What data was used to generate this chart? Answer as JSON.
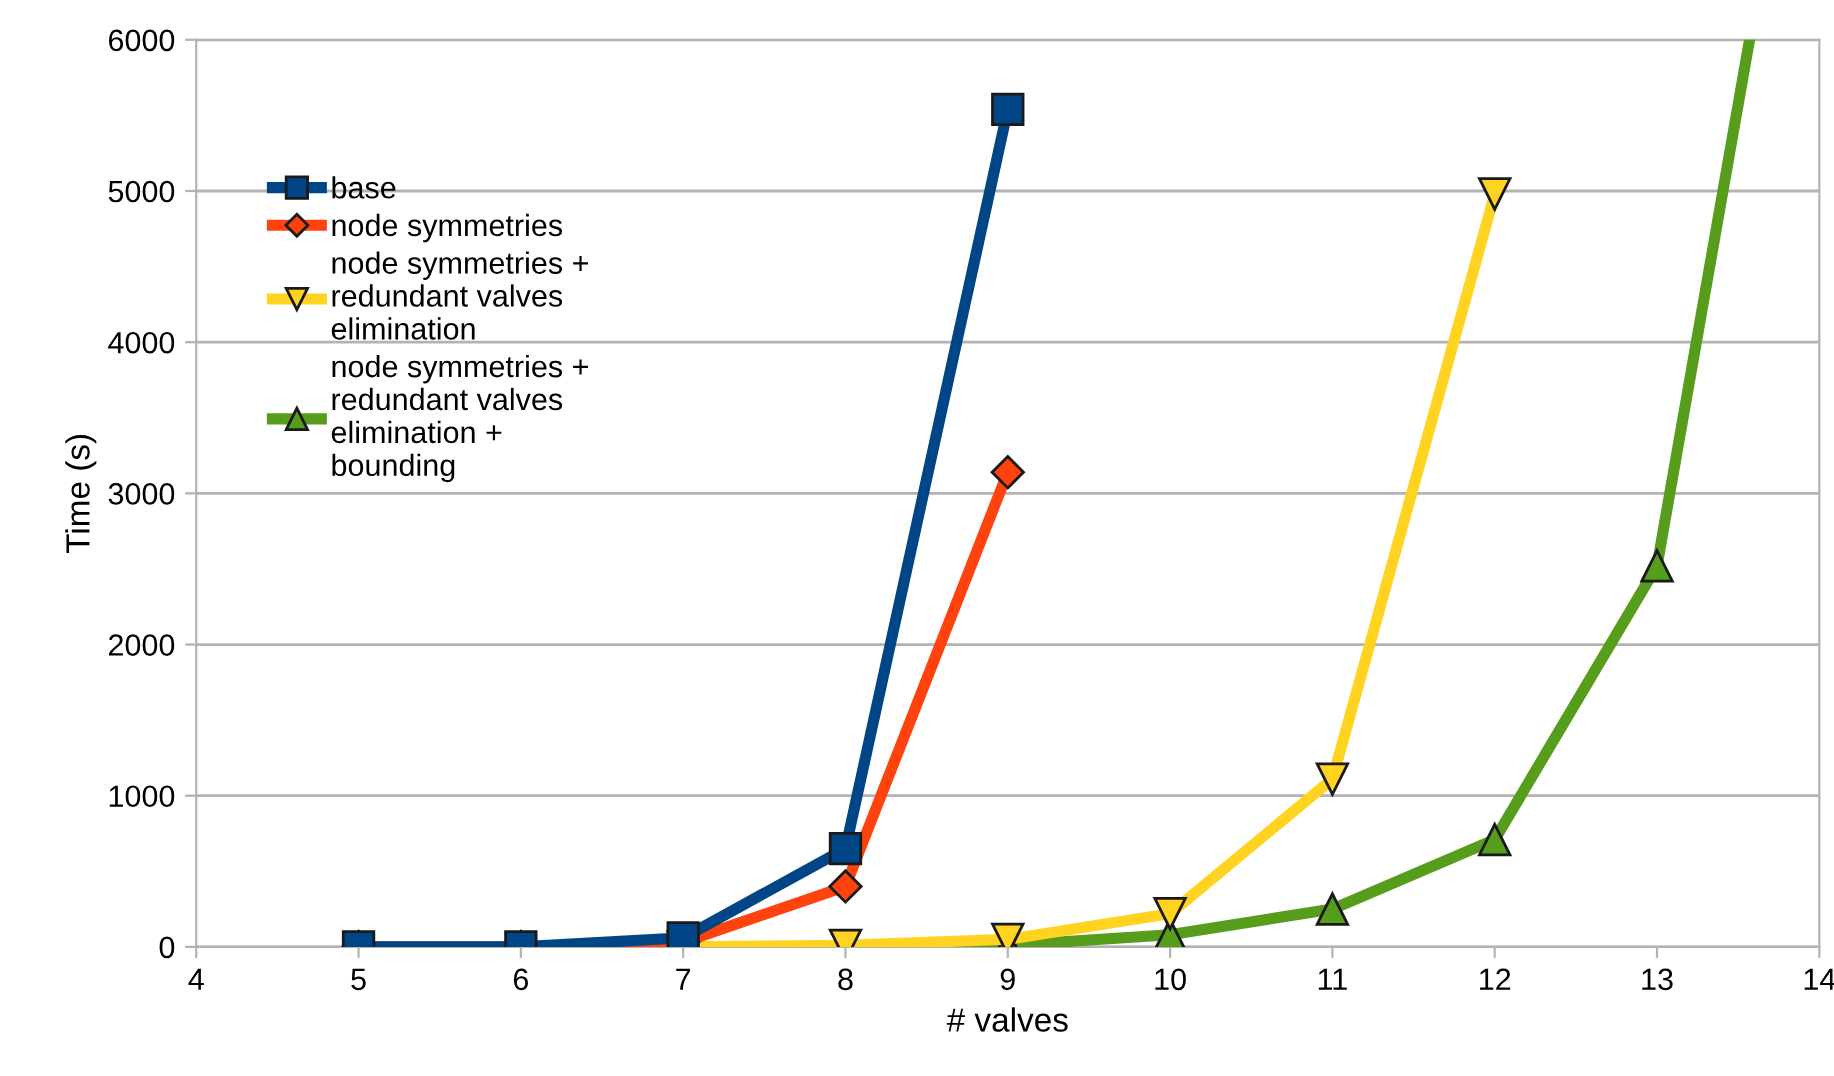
{
  "chart_data": {
    "type": "line",
    "xlabel": "# valves",
    "ylabel": "Time (s)",
    "xlim": [
      4,
      14
    ],
    "xticks": [
      4,
      5,
      6,
      7,
      8,
      9,
      10,
      11,
      12,
      13,
      14
    ],
    "ylim": [
      0,
      6000
    ],
    "yticks": [
      0,
      1000,
      2000,
      3000,
      4000,
      5000,
      6000
    ],
    "grid": "y",
    "legend": "top left",
    "series": [
      {
        "name": "base",
        "color": "#004586",
        "marker": "square",
        "x": [
          5,
          6,
          7,
          8,
          9
        ],
        "values": [
          0,
          0,
          60,
          650,
          5540
        ]
      },
      {
        "name": "node symmetries",
        "color": "#ff420e",
        "marker": "diamond",
        "x": [
          5,
          6,
          7,
          8,
          9
        ],
        "values": [
          0,
          0,
          30,
          400,
          3140
        ]
      },
      {
        "name": "node symmetries + redundant valves elimination",
        "color": "#ffd320",
        "marker": "triangle_down",
        "x": [
          7,
          8,
          9,
          10,
          11,
          12
        ],
        "values": [
          0,
          10,
          50,
          220,
          1110,
          4980
        ]
      },
      {
        "name": "node symmetries + redundant valves elimination + bounding",
        "color": "#579d1c",
        "marker": "triangle",
        "x": [
          7,
          8,
          9,
          10,
          11,
          12,
          13,
          13.57
        ],
        "values": [
          0,
          0,
          10,
          80,
          250,
          710,
          2520,
          6000
        ]
      }
    ]
  }
}
